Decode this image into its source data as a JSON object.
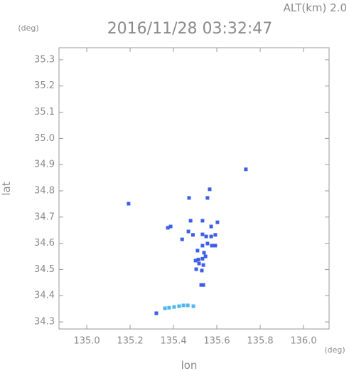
{
  "chart_data": {
    "type": "scatter",
    "title": "2016/11/28 03:32:47",
    "altitude_label": "ALT(km) 2.0",
    "x_label": "lon",
    "y_label": "lat",
    "x_unit": "(deg)",
    "y_unit": "(deg)",
    "xlim": [
      134.872,
      136.118
    ],
    "ylim": [
      34.273,
      35.346
    ],
    "xticks": [
      {
        "value": 135,
        "label": "135.0"
      },
      135.2,
      135.4,
      135.6,
      135.8,
      {
        "value": 136,
        "label": "136.0"
      }
    ],
    "yticks": [
      34.3,
      34.4,
      34.5,
      34.6,
      34.7,
      34.8,
      34.9,
      {
        "value": 35,
        "label": "35.0"
      },
      35.1,
      35.2,
      35.3
    ],
    "grid": false,
    "series": [
      {
        "color": "#3d5fe6",
        "x": [
          135.193,
          135.472,
          135.557,
          135.567,
          135.734,
          135.374,
          135.387,
          135.479,
          135.469,
          135.49,
          135.44,
          135.534,
          135.551,
          135.574,
          135.593,
          135.603,
          135.574,
          135.534,
          135.534,
          135.577,
          135.557,
          135.593,
          135.511,
          135.541,
          135.548,
          135.502,
          135.518,
          135.538,
          135.505,
          135.531,
          135.515,
          135.534,
          135.528,
          135.538,
          135.321
        ],
        "y": [
          34.751,
          34.773,
          34.773,
          34.806,
          34.882,
          34.659,
          34.664,
          34.686,
          34.645,
          34.632,
          34.615,
          34.634,
          34.626,
          34.626,
          34.632,
          34.68,
          34.664,
          34.686,
          34.591,
          34.591,
          34.599,
          34.591,
          34.572,
          34.564,
          34.55,
          34.534,
          34.523,
          34.517,
          34.501,
          34.496,
          34.538,
          34.541,
          34.441,
          34.441,
          34.333
        ]
      },
      {
        "color": "#4fb7ef",
        "x": [
          135.361,
          135.38,
          135.403,
          135.426,
          135.446,
          135.466,
          135.492
        ],
        "y": [
          34.352,
          34.354,
          34.357,
          34.36,
          34.363,
          34.363,
          34.36
        ]
      }
    ]
  }
}
